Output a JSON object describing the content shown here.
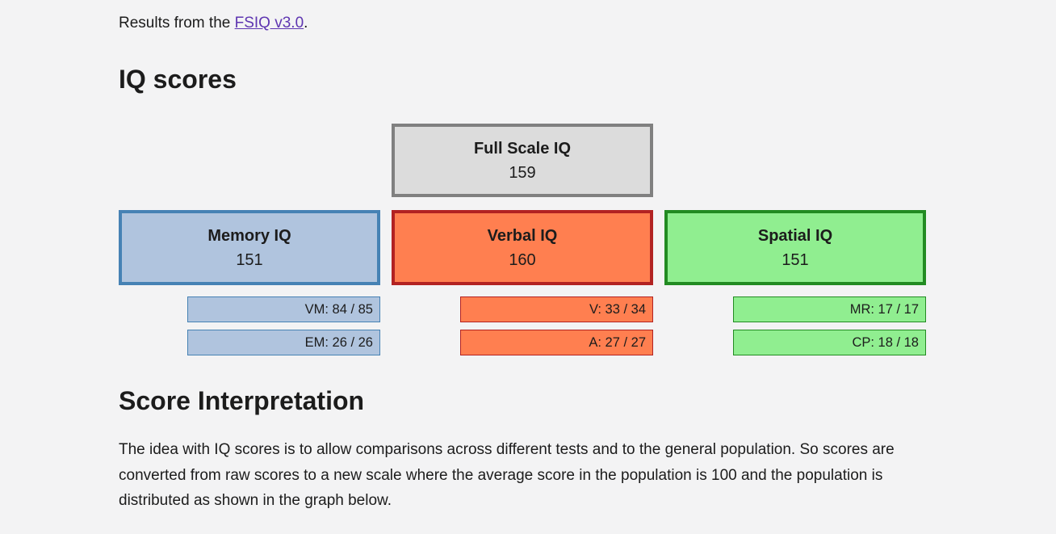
{
  "intro": {
    "prefix": "Results from the ",
    "link_text": "FSIQ v3.0",
    "suffix": ".",
    "link_color": "#5e35b1"
  },
  "headings": {
    "iq_scores": "IQ scores",
    "interpretation": "Score Interpretation"
  },
  "full_scale": {
    "label": "Full Scale IQ",
    "value": "159",
    "fill": "#dcdcdc",
    "border": "#808080"
  },
  "domains": [
    {
      "id": "memory",
      "label": "Memory IQ",
      "value": "151",
      "fill": "#b0c4de",
      "border": "#4682b4",
      "subtests": [
        "VM: 84 / 85",
        "EM: 26 / 26"
      ]
    },
    {
      "id": "verbal",
      "label": "Verbal IQ",
      "value": "160",
      "fill": "#ff7f50",
      "border": "#b22222",
      "subtests": [
        "V: 33 / 34",
        "A: 27 / 27"
      ]
    },
    {
      "id": "spatial",
      "label": "Spatial IQ",
      "value": "151",
      "fill": "#90ee90",
      "border": "#228b22",
      "subtests": [
        "MR: 17 / 17",
        "CP: 18 / 18"
      ]
    }
  ],
  "paragraph": "The idea with IQ scores is to allow comparisons across different tests and to the general population. So scores are converted from raw scores to a new scale where the average score in the population is 100 and the population is distributed as shown in the graph below.",
  "colors": {
    "page_background": "#f3f3f4",
    "text": "#1c1c1c"
  }
}
